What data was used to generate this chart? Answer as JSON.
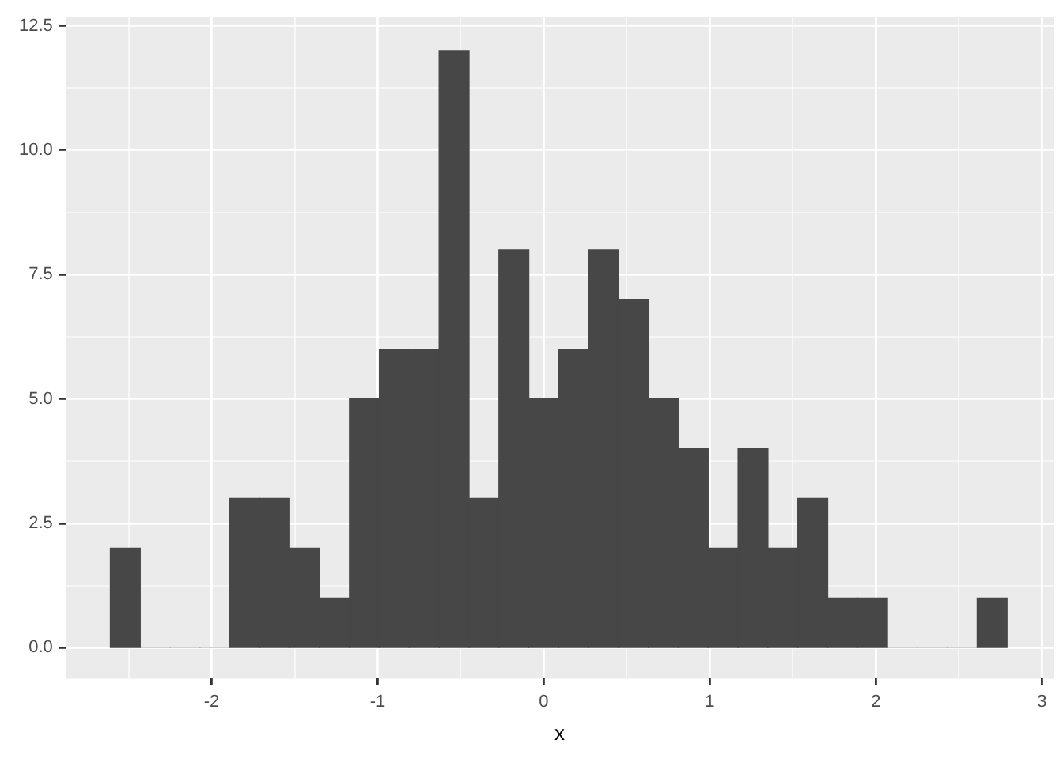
{
  "chart_data": {
    "type": "histogram",
    "xlabel": "x",
    "bins": [
      -2.61,
      -2.43,
      -2.25,
      -2.07,
      -1.89,
      -1.71,
      -1.53,
      -1.35,
      -1.17,
      -0.99,
      -0.81,
      -0.63,
      -0.45,
      -0.27,
      -0.09,
      0.09,
      0.27,
      0.45,
      0.63,
      0.81,
      0.99,
      1.17,
      1.35,
      1.53,
      1.71,
      1.89,
      2.07,
      2.25,
      2.43,
      2.61,
      2.79
    ],
    "values": [
      2,
      0,
      0,
      0,
      3,
      3,
      2,
      1,
      5,
      6,
      6,
      12,
      3,
      8,
      5,
      6,
      8,
      7,
      5,
      4,
      2,
      4,
      2,
      3,
      1,
      1,
      0,
      0,
      0,
      1
    ],
    "color": "#474747",
    "xlim": [
      -2.88,
      3.07
    ],
    "xticks": [
      -2,
      {
        "value": -2.5,
        "label": null
      },
      {
        "value": -1.5,
        "label": null
      },
      -1,
      {
        "value": -0.5,
        "label": null
      },
      0,
      {
        "value": 0.5,
        "label": null
      },
      1,
      {
        "value": 1.5,
        "label": null
      },
      2,
      {
        "value": 2.5,
        "label": null
      },
      3
    ],
    "ylim": [
      -0.62,
      12.68
    ],
    "yticks": [
      {
        "value": 0,
        "label": "0.0"
      },
      {
        "value": 1.25,
        "label": null
      },
      {
        "value": 2.5,
        "label": "2.5"
      },
      {
        "value": 3.75,
        "label": null
      },
      {
        "value": 5,
        "label": "5.0"
      },
      {
        "value": 6.25,
        "label": null
      },
      {
        "value": 7.5,
        "label": "7.5"
      },
      {
        "value": 8.75,
        "label": null
      },
      {
        "value": 10,
        "label": "10.0"
      },
      {
        "value": 11.25,
        "label": null
      },
      {
        "value": 12.5,
        "label": "12.5"
      }
    ],
    "grid": true
  }
}
